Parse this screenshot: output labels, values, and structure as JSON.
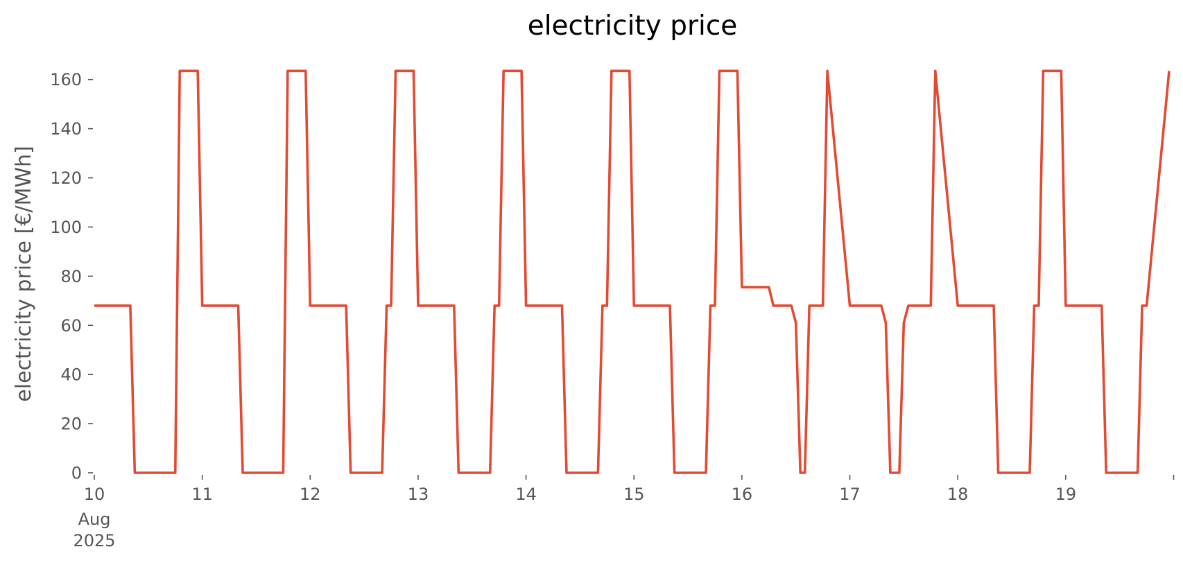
{
  "chart_data": {
    "type": "line",
    "title": "electricity price",
    "xlabel": "",
    "ylabel": "electricity price [€/MWh]",
    "ylim": [
      0,
      165
    ],
    "xlim": [
      "2025-08-10 00:00",
      "2025-08-19 23:00"
    ],
    "grid": false,
    "legend": "none",
    "y_ticks": [
      "0",
      "20",
      "40",
      "60",
      "80",
      "100",
      "120",
      "140",
      "160"
    ],
    "x_ticks": [
      "10",
      "11",
      "12",
      "13",
      "14",
      "15",
      "16",
      "17",
      "18",
      "19"
    ],
    "x_tick_sublabels": [
      "Aug",
      "2025"
    ],
    "series": [
      {
        "color": "#e24a33",
        "x": [
          "2025-08-10 00:00",
          "2025-08-10 08:00",
          "2025-08-10 09:00",
          "2025-08-10 18:00",
          "2025-08-10 19:00",
          "2025-08-10 23:00",
          "2025-08-11 00:00",
          "2025-08-11 08:00",
          "2025-08-11 09:00",
          "2025-08-11 18:00",
          "2025-08-11 19:00",
          "2025-08-11 23:00",
          "2025-08-12 00:00",
          "2025-08-12 08:00",
          "2025-08-12 09:00",
          "2025-08-12 16:00",
          "2025-08-12 17:00",
          "2025-08-12 18:00",
          "2025-08-12 19:00",
          "2025-08-12 23:00",
          "2025-08-13 00:00",
          "2025-08-13 08:00",
          "2025-08-13 09:00",
          "2025-08-13 16:00",
          "2025-08-13 17:00",
          "2025-08-13 18:00",
          "2025-08-13 19:00",
          "2025-08-13 23:00",
          "2025-08-14 00:00",
          "2025-08-14 08:00",
          "2025-08-14 09:00",
          "2025-08-14 16:00",
          "2025-08-14 17:00",
          "2025-08-14 18:00",
          "2025-08-14 19:00",
          "2025-08-14 23:00",
          "2025-08-15 00:00",
          "2025-08-15 08:00",
          "2025-08-15 09:00",
          "2025-08-15 16:00",
          "2025-08-15 17:00",
          "2025-08-15 18:00",
          "2025-08-15 19:00",
          "2025-08-15 23:00",
          "2025-08-16 00:00",
          "2025-08-16 06:00",
          "2025-08-16 07:00",
          "2025-08-16 11:00",
          "2025-08-16 12:00",
          "2025-08-16 13:00",
          "2025-08-16 14:00",
          "2025-08-16 15:00",
          "2025-08-16 18:00",
          "2025-08-16 19:00",
          "2025-08-17 00:00",
          "2025-08-17 07:00",
          "2025-08-17 08:00",
          "2025-08-17 09:00",
          "2025-08-17 11:00",
          "2025-08-17 12:00",
          "2025-08-17 13:00",
          "2025-08-17 18:00",
          "2025-08-17 19:00",
          "2025-08-18 00:00",
          "2025-08-18 08:00",
          "2025-08-18 09:00",
          "2025-08-18 16:00",
          "2025-08-18 17:00",
          "2025-08-18 18:00",
          "2025-08-18 19:00",
          "2025-08-18 23:00",
          "2025-08-19 00:00",
          "2025-08-19 08:00",
          "2025-08-19 09:00",
          "2025-08-19 16:00",
          "2025-08-19 17:00",
          "2025-08-19 18:00",
          "2025-08-19 23:00"
        ],
        "y": [
          68,
          68,
          0,
          0,
          163.5,
          163.5,
          68,
          68,
          0,
          0,
          163.5,
          163.5,
          68,
          68,
          0,
          0,
          68,
          68,
          163.5,
          163.5,
          68,
          68,
          0,
          0,
          68,
          68,
          163.5,
          163.5,
          68,
          68,
          0,
          0,
          68,
          68,
          163.5,
          163.5,
          68,
          68,
          0,
          0,
          68,
          68,
          163.5,
          163.5,
          75.5,
          75.5,
          68,
          68,
          61,
          0,
          0,
          68,
          68,
          163.5,
          68,
          68,
          61,
          0,
          0,
          61,
          68,
          68,
          163.5,
          68,
          68,
          0,
          0,
          68,
          68,
          163.5,
          163.5,
          68,
          68,
          0,
          0,
          68,
          68,
          163.5
        ]
      }
    ]
  }
}
